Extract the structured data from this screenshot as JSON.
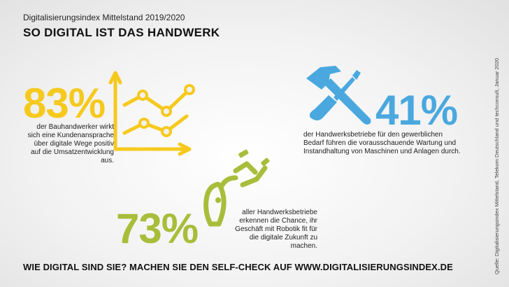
{
  "header": {
    "subtitle": "Digitalisierungsindex Mittelstand 2019/2020",
    "title": "SO DIGITAL IST DAS HANDWERK"
  },
  "stats": [
    {
      "value": "83%",
      "text": "der Bauhandwerker wirkt sich eine Kundenansprache über digitale Wege positiv auf die Umsatzentwicklung aus.",
      "color": "#f6c91e",
      "icon": "line-chart-icon"
    },
    {
      "value": "41%",
      "text": "der Handwerksbetriebe für den gewerblichen Bedarf führen die vorausschauende Wartung und Instandhaltung von Maschinen und Anlagen durch.",
      "color": "#4aa8df",
      "icon": "hammer-screwdriver-icon"
    },
    {
      "value": "73%",
      "text": "aller Handwerksbetriebe erkennen die Chance, ihr Geschäft mit Robotik fit für die digitale Zukunft zu machen.",
      "color": "#a8bd3a",
      "icon": "robot-arm-icon"
    }
  ],
  "footer": {
    "cta": "WIE DIGITAL SIND SIE? MACHEN SIE DEN SELF-CHECK AUF WWW.DIGITALISIERUNGSINDEX.DE"
  },
  "source": "Quelle: Digitalisierungsindex Mittelstand, Telekom Deutschland und techconsult, Januar 2020"
}
